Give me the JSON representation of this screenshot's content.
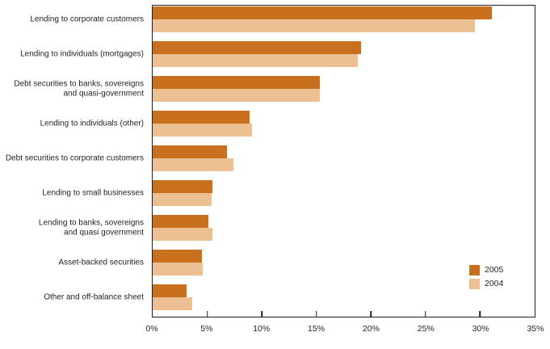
{
  "chart_data": {
    "type": "bar",
    "orientation": "horizontal",
    "title": "",
    "categories": [
      "Lending to corporate customers",
      "Lending to individuals (mortgages)",
      "Debt securities to banks, sovereigns\nand quasi-government",
      "Lending to individuals (other)",
      "Debt securities to corporate customers",
      "Lending to small businesses",
      "Lending to banks, sovereigns\nand quasi government",
      "Asset-backed securities",
      "Other and off-balance sheet"
    ],
    "series": [
      {
        "name": "2005",
        "color": "#c8701e",
        "values": [
          31.1,
          19.1,
          15.3,
          8.9,
          6.8,
          5.5,
          5.1,
          4.5,
          3.1
        ]
      },
      {
        "name": "2004",
        "color": "#edc094",
        "values": [
          29.5,
          18.8,
          15.3,
          9.1,
          7.4,
          5.4,
          5.5,
          4.6,
          3.6
        ]
      }
    ],
    "x_axis": {
      "min": 0,
      "max": 35,
      "tick_step": 5,
      "tick_labels": [
        "0%",
        "5%",
        "10%",
        "15%",
        "20%",
        "25%",
        "30%",
        "35%"
      ]
    },
    "y_axis": {
      "label": ""
    },
    "legend": {
      "position": "inside-bottom-right",
      "entries": [
        "2005",
        "2004"
      ]
    },
    "grid": false,
    "border_color": "#231f20"
  }
}
